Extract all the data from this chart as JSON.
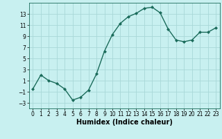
{
  "x": [
    0,
    1,
    2,
    3,
    4,
    5,
    6,
    7,
    8,
    9,
    10,
    11,
    12,
    13,
    14,
    15,
    16,
    17,
    18,
    19,
    20,
    21,
    22,
    23
  ],
  "y": [
    -0.5,
    2.0,
    1.0,
    0.5,
    -0.5,
    -2.5,
    -2.0,
    -0.7,
    2.2,
    6.3,
    9.3,
    11.3,
    12.5,
    13.1,
    14.0,
    14.2,
    13.2,
    10.3,
    8.3,
    8.0,
    8.3,
    9.7,
    9.7,
    10.5
  ],
  "line_color": "#1a6b5a",
  "marker": "D",
  "marker_size": 2,
  "line_width": 1.0,
  "xlabel": "Humidex (Indice chaleur)",
  "xlim": [
    -0.5,
    23.5
  ],
  "ylim": [
    -4,
    15
  ],
  "yticks": [
    -3,
    -1,
    1,
    3,
    5,
    7,
    9,
    11,
    13
  ],
  "xticks": [
    0,
    1,
    2,
    3,
    4,
    5,
    6,
    7,
    8,
    9,
    10,
    11,
    12,
    13,
    14,
    15,
    16,
    17,
    18,
    19,
    20,
    21,
    22,
    23
  ],
  "bg_color": "#c8f0f0",
  "grid_color": "#a8d8d8",
  "xlabel_fontsize": 7,
  "tick_fontsize": 5.5
}
